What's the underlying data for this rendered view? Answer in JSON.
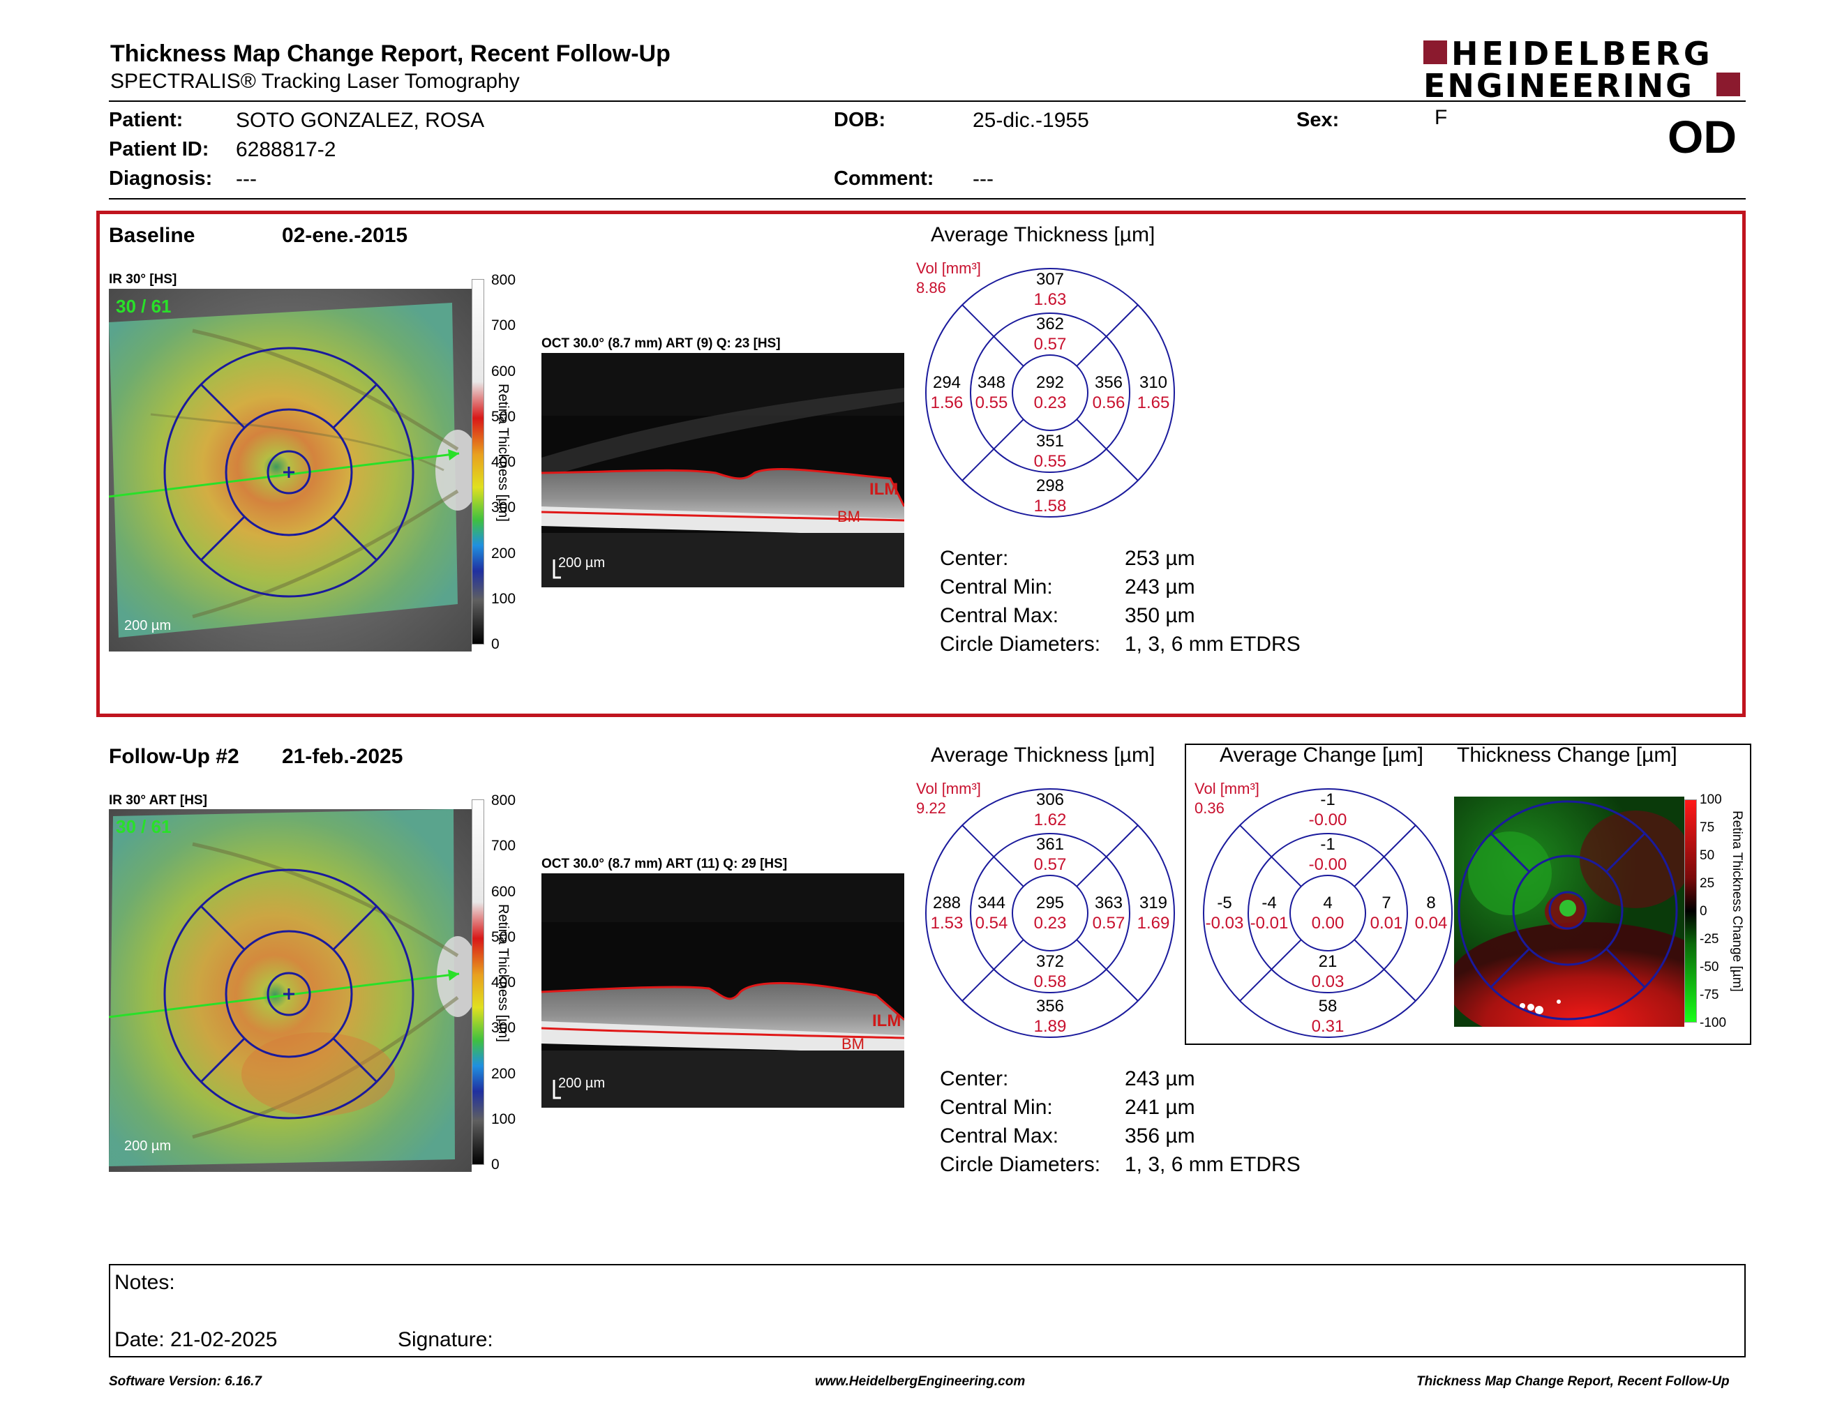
{
  "header": {
    "title": "Thickness Map Change Report, Recent Follow-Up",
    "subtitle": "SPECTRALIS® Tracking Laser Tomography",
    "logo_line1": "HEIDELBERG",
    "logo_line2": "ENGINEERING",
    "eye": "OD"
  },
  "patient": {
    "patient_label": "Patient:",
    "patient_value": "SOTO GONZALEZ, ROSA",
    "id_label": "Patient ID:",
    "id_value": "6288817-2",
    "diag_label": "Diagnosis:",
    "diag_value": "---",
    "dob_label": "DOB:",
    "dob_value": "25-dic.-1955",
    "comment_label": "Comment:",
    "comment_value": "---",
    "sex_label": "Sex:",
    "sex_value": "F"
  },
  "baseline": {
    "label": "Baseline",
    "date": "02-ene.-2015",
    "ir_label": "IR 30° [HS]",
    "frame_count": "30 / 61",
    "oct_label": "OCT 30.0° (8.7 mm) ART (9) Q: 23 [HS]",
    "scale_label": "200 µm",
    "avg_title": "Average Thickness [µm]",
    "vol_label": "Vol [mm³]",
    "vol_value": "8.86",
    "grid": {
      "center": {
        "t": "292",
        "v": "0.23"
      },
      "inner_top": {
        "t": "362",
        "v": "0.57"
      },
      "inner_bottom": {
        "t": "351",
        "v": "0.55"
      },
      "inner_left": {
        "t": "348",
        "v": "0.55"
      },
      "inner_right": {
        "t": "356",
        "v": "0.56"
      },
      "outer_top": {
        "t": "307",
        "v": "1.63"
      },
      "outer_bottom": {
        "t": "298",
        "v": "1.58"
      },
      "outer_left": {
        "t": "294",
        "v": "1.56"
      },
      "outer_right": {
        "t": "310",
        "v": "1.65"
      }
    },
    "stats": [
      {
        "label": "Center:",
        "value": "253 µm"
      },
      {
        "label": "Central Min:",
        "value": "243 µm"
      },
      {
        "label": "Central Max:",
        "value": "350 µm"
      },
      {
        "label": "Circle Diameters:",
        "value": "1, 3, 6 mm ETDRS"
      }
    ]
  },
  "followup": {
    "label": "Follow-Up #2",
    "date": "21-feb.-2025",
    "ir_label": "IR 30° ART [HS]",
    "frame_count": "30 / 61",
    "oct_label": "OCT 30.0° (8.7 mm) ART (11) Q: 29 [HS]",
    "scale_label": "200 µm",
    "avg_title": "Average Thickness [µm]",
    "vol_label": "Vol [mm³]",
    "vol_value": "9.22",
    "grid": {
      "center": {
        "t": "295",
        "v": "0.23"
      },
      "inner_top": {
        "t": "361",
        "v": "0.57"
      },
      "inner_bottom": {
        "t": "372",
        "v": "0.58"
      },
      "inner_left": {
        "t": "344",
        "v": "0.54"
      },
      "inner_right": {
        "t": "363",
        "v": "0.57"
      },
      "outer_top": {
        "t": "306",
        "v": "1.62"
      },
      "outer_bottom": {
        "t": "356",
        "v": "1.89"
      },
      "outer_left": {
        "t": "288",
        "v": "1.53"
      },
      "outer_right": {
        "t": "319",
        "v": "1.69"
      }
    },
    "stats": [
      {
        "label": "Center:",
        "value": "243 µm"
      },
      {
        "label": "Central Min:",
        "value": "241 µm"
      },
      {
        "label": "Central Max:",
        "value": "356 µm"
      },
      {
        "label": "Circle Diameters:",
        "value": "1, 3, 6 mm ETDRS"
      }
    ],
    "change_title": "Average Change [µm]",
    "change_map_title": "Thickness Change [µm]",
    "change_vol_label": "Vol [mm³]",
    "change_vol_value": "0.36",
    "change_grid": {
      "center": {
        "t": "4",
        "v": "0.00"
      },
      "inner_top": {
        "t": "-1",
        "v": "-0.00"
      },
      "inner_bottom": {
        "t": "21",
        "v": "0.03"
      },
      "inner_left": {
        "t": "-4",
        "v": "-0.01"
      },
      "inner_right": {
        "t": "7",
        "v": "0.01"
      },
      "outer_top": {
        "t": "-1",
        "v": "-0.00"
      },
      "outer_bottom": {
        "t": "58",
        "v": "0.31"
      },
      "outer_left": {
        "t": "-5",
        "v": "-0.03"
      },
      "outer_right": {
        "t": "8",
        "v": "0.04"
      }
    }
  },
  "colorbar": {
    "title": "Retina Thickness [µm]",
    "ticks": [
      "800",
      "700",
      "600",
      "500",
      "400",
      "300",
      "200",
      "100",
      "0"
    ]
  },
  "change_colorbar": {
    "title": "Retina Thickness Change [µm]",
    "ticks": [
      "100",
      "75",
      "50",
      "25",
      "0",
      "-25",
      "-50",
      "-75",
      "-100"
    ]
  },
  "oct_layers": {
    "ilm": "ILM",
    "bm": "BM"
  },
  "notes": {
    "label": "Notes:",
    "date_label": "Date: 21-02-2025",
    "signature_label": "Signature:"
  },
  "footer": {
    "version": "Software Version: 6.16.7",
    "website": "www.HeidelbergEngineering.com",
    "report_name": "Thickness Map Change Report, Recent Follow-Up"
  },
  "colors": {
    "brand_red": "#8b1a2e",
    "frame_red": "#c0141e",
    "value_red": "#c8102e",
    "grid_blue": "#1a1a9c"
  }
}
